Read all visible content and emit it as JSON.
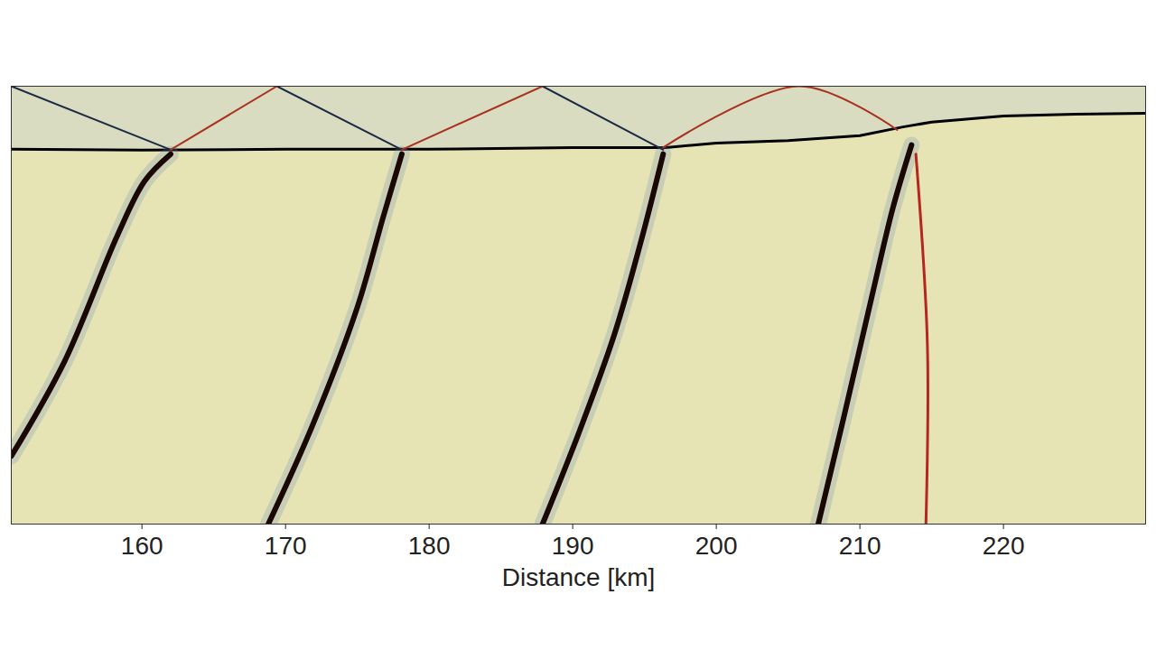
{
  "chart_data": {
    "type": "line",
    "xlabel": "Distance [km]",
    "xlim": [
      150.9,
      229.9
    ],
    "xticks": [
      160,
      170,
      180,
      190,
      200,
      210,
      220
    ],
    "ylim": [
      0,
      1
    ],
    "tick_labels": "x",
    "grid": false,
    "series": [
      {
        "color": "#000000",
        "line_style": "medium",
        "x": [
          150.9,
          160,
          170,
          180,
          190,
          196.5,
          200,
          205,
          210,
          213,
          215,
          220,
          225,
          229.9
        ],
        "values": [
          0.144,
          0.146,
          0.144,
          0.144,
          0.14,
          0.14,
          0.13,
          0.124,
          0.113,
          0.093,
          0.082,
          0.068,
          0.064,
          0.062
        ]
      },
      {
        "color": "#1a0805",
        "line_style": "thick",
        "x": [
          150.9,
          154.6,
          158.3,
          160.2,
          162.0
        ],
        "values": [
          0.845,
          0.629,
          0.34,
          0.216,
          0.155
        ]
      },
      {
        "color": "#1a0805",
        "line_style": "thick",
        "x": [
          168.8,
          171.9,
          175.0,
          176.8,
          178.1
        ],
        "values": [
          1.0,
          0.773,
          0.505,
          0.299,
          0.155
        ]
      },
      {
        "color": "#1a0805",
        "line_style": "thick",
        "x": [
          187.9,
          190.4,
          192.9,
          194.7,
          196.3
        ],
        "values": [
          1.0,
          0.794,
          0.567,
          0.361,
          0.155
        ]
      },
      {
        "color": "#1a0805",
        "line_style": "thick",
        "x": [
          207.1,
          208.9,
          210.8,
          212.3,
          213.6
        ],
        "values": [
          1.0,
          0.753,
          0.485,
          0.278,
          0.134
        ]
      },
      {
        "color": "#b5261e",
        "line_style": "medium",
        "x": [
          213.9,
          214.7,
          214.6
        ],
        "values": [
          0.155,
          0.588,
          1.0
        ]
      },
      {
        "color": "#1c2a44",
        "line_style": "thin",
        "x": [
          150.9,
          162.0
        ],
        "values": [
          0.0,
          0.145
        ]
      },
      {
        "color": "#1c2a44",
        "line_style": "thin",
        "x": [
          169.4,
          178.1
        ],
        "values": [
          0.0,
          0.145
        ]
      },
      {
        "color": "#1c2a44",
        "line_style": "thin",
        "x": [
          187.9,
          196.3
        ],
        "values": [
          0.0,
          0.145
        ]
      },
      {
        "color": "#a8321f",
        "line_style": "thin",
        "x": [
          162.0,
          169.4
        ],
        "values": [
          0.145,
          0.0
        ]
      },
      {
        "color": "#a8321f",
        "line_style": "thin",
        "x": [
          178.1,
          187.9
        ],
        "values": [
          0.145,
          0.0
        ]
      },
      {
        "color": "#a8321f",
        "line_style": "thin",
        "x": [
          196.3,
          205.8,
          212.6
        ],
        "values": [
          0.14,
          0.0,
          0.1
        ]
      }
    ]
  }
}
